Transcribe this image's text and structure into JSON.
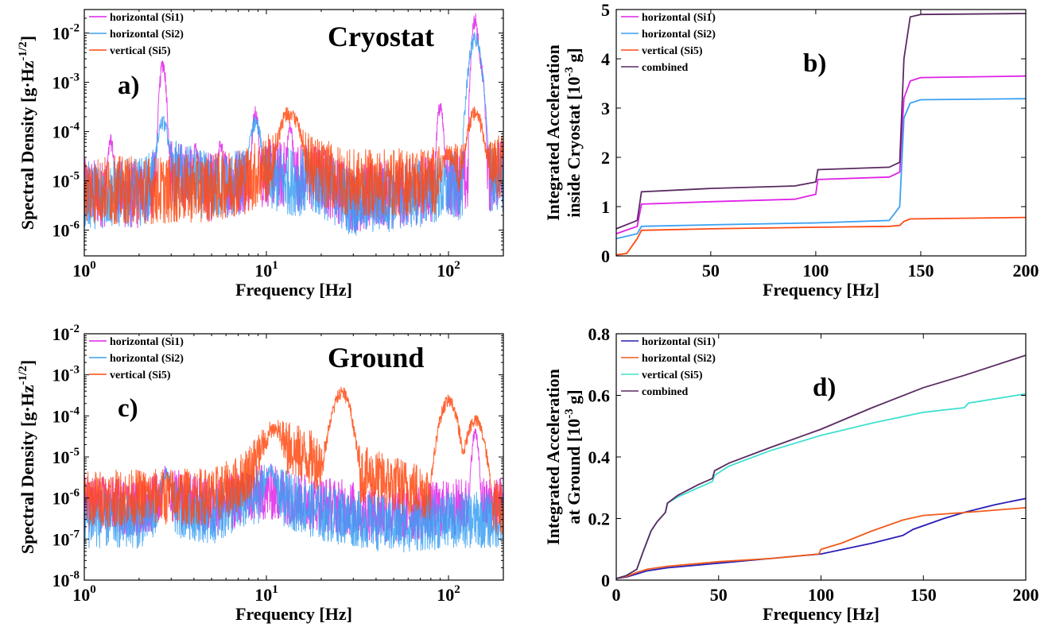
{
  "figure": {
    "panels": [
      {
        "tag": "a)",
        "title": "Cryostat"
      },
      {
        "tag": "b)",
        "title": ""
      },
      {
        "tag": "c)",
        "title": "Ground"
      },
      {
        "tag": "d)",
        "title": ""
      }
    ]
  },
  "colors": {
    "si1_psd": "#e022e8",
    "si2_psd": "#3aa0f2",
    "si5_psd": "#ff4a12",
    "combined": "#5a2a62",
    "ground_si1": "#2a1fb5",
    "ground_si2": "#f05a1a",
    "ground_si5": "#40e0d0"
  },
  "chart_data": [
    {
      "id": "a",
      "type": "line",
      "title": "Cryostat",
      "xlabel": "Frequency [Hz]",
      "ylabel": "Spectral Density [g·Hz",
      "ylabel_exp": "-1/2",
      "ylabel_close": "]",
      "xscale": "log",
      "yscale": "log",
      "xlim": [
        1,
        200
      ],
      "ylim": [
        3e-07,
        0.03
      ],
      "xticks": [
        1,
        10,
        100
      ],
      "xtick_labels": [
        {
          "base": "10",
          "exp": "0"
        },
        {
          "base": "10",
          "exp": "1"
        },
        {
          "base": "10",
          "exp": "2"
        }
      ],
      "yticks": [
        1e-06,
        1e-05,
        0.0001,
        0.001,
        0.01
      ],
      "ytick_labels": [
        {
          "base": "10",
          "exp": "-6"
        },
        {
          "base": "10",
          "exp": "-5"
        },
        {
          "base": "10",
          "exp": "-4"
        },
        {
          "base": "10",
          "exp": "-3"
        },
        {
          "base": "10",
          "exp": "-2"
        }
      ],
      "legend_position": "top-left",
      "series": [
        {
          "name": "horizontal (Si1)",
          "color": "#e022e8",
          "baseline": [
            [
              1,
              8e-06
            ],
            [
              2,
              7e-06
            ],
            [
              3,
              2e-05
            ],
            [
              5,
              1e-05
            ],
            [
              10,
              2e-05
            ],
            [
              20,
              1.5e-05
            ],
            [
              30,
              6e-06
            ],
            [
              60,
              8e-06
            ],
            [
              100,
              1.2e-05
            ],
            [
              200,
              1.8e-05
            ]
          ],
          "peaks": [
            [
              1.4,
              8e-05
            ],
            [
              2.7,
              0.003
            ],
            [
              4.1,
              6e-05
            ],
            [
              5.6,
              7e-05
            ],
            [
              8.7,
              0.0003
            ],
            [
              13.5,
              0.00015
            ],
            [
              90,
              0.0004
            ],
            [
              140,
              0.025
            ],
            [
              150,
              0.003
            ]
          ]
        },
        {
          "name": "horizontal (Si2)",
          "color": "#3aa0f2",
          "baseline": [
            [
              1,
              7e-06
            ],
            [
              2,
              8e-06
            ],
            [
              3,
              2e-05
            ],
            [
              5,
              1e-05
            ],
            [
              10,
              1.5e-05
            ],
            [
              20,
              1.2e-05
            ],
            [
              30,
              5e-06
            ],
            [
              60,
              7e-06
            ],
            [
              100,
              1e-05
            ],
            [
              200,
              1.6e-05
            ]
          ],
          "peaks": [
            [
              2.7,
              0.0002
            ],
            [
              8.7,
              0.0002
            ],
            [
              140,
              0.01
            ],
            [
              145,
              0.002
            ]
          ]
        },
        {
          "name": "vertical (Si5)",
          "color": "#ff4a12",
          "baseline": [
            [
              1,
              9e-06
            ],
            [
              3,
              9e-06
            ],
            [
              5,
              1e-05
            ],
            [
              8,
              1.5e-05
            ],
            [
              10,
              2.5e-05
            ],
            [
              14,
              4e-05
            ],
            [
              20,
              2e-05
            ],
            [
              30,
              1.2e-05
            ],
            [
              60,
              1.3e-05
            ],
            [
              100,
              1.5e-05
            ],
            [
              200,
              2.5e-05
            ]
          ],
          "peaks": [
            [
              13,
              0.0003
            ],
            [
              14,
              0.00025
            ],
            [
              100,
              4e-05
            ],
            [
              140,
              0.0003
            ]
          ]
        }
      ]
    },
    {
      "id": "b",
      "type": "line",
      "xlabel": "Frequency [Hz]",
      "ylabel_line1": "Integrated Acceleration",
      "ylabel_line2": "inside Cryostat [10",
      "ylabel_exp": "-3",
      "ylabel_close": " g]",
      "xlim": [
        5,
        200
      ],
      "ylim": [
        0,
        5
      ],
      "xticks": [
        50,
        100,
        150,
        200
      ],
      "yticks": [
        0,
        1,
        2,
        3,
        4,
        5
      ],
      "legend_position": "top-left",
      "series": [
        {
          "name": "horizontal (Si1)",
          "color": "#e022e8",
          "x": [
            5,
            15,
            17,
            50,
            90,
            100,
            101,
            135,
            140,
            142,
            145,
            150,
            200
          ],
          "y": [
            0.45,
            0.6,
            1.05,
            1.1,
            1.15,
            1.25,
            1.55,
            1.6,
            1.7,
            3.2,
            3.55,
            3.62,
            3.65
          ]
        },
        {
          "name": "horizontal (Si2)",
          "color": "#3aa0f2",
          "x": [
            5,
            15,
            17,
            50,
            100,
            135,
            140,
            142,
            145,
            150,
            200
          ],
          "y": [
            0.35,
            0.45,
            0.6,
            0.63,
            0.67,
            0.72,
            1.0,
            2.8,
            3.1,
            3.17,
            3.19
          ]
        },
        {
          "name": "vertical (Si5)",
          "color": "#ff4a12",
          "x": [
            5,
            10,
            15,
            17,
            50,
            100,
            135,
            140,
            142,
            145,
            200
          ],
          "y": [
            0.02,
            0.05,
            0.35,
            0.52,
            0.55,
            0.58,
            0.6,
            0.62,
            0.7,
            0.75,
            0.78
          ]
        },
        {
          "name": "combined",
          "color": "#5a2a62",
          "x": [
            5,
            15,
            17,
            50,
            90,
            100,
            101,
            135,
            140,
            142,
            145,
            150,
            200
          ],
          "y": [
            0.55,
            0.72,
            1.3,
            1.37,
            1.42,
            1.5,
            1.75,
            1.8,
            1.9,
            4.0,
            4.85,
            4.9,
            4.92
          ]
        }
      ]
    },
    {
      "id": "c",
      "type": "line",
      "title": "Ground",
      "xlabel": "Frequency [Hz]",
      "ylabel": "Spectral Density [g·Hz",
      "ylabel_exp": "-1/2",
      "ylabel_close": "]",
      "xscale": "log",
      "yscale": "log",
      "xlim": [
        1,
        200
      ],
      "ylim": [
        1e-08,
        0.01
      ],
      "xticks": [
        1,
        10,
        100
      ],
      "xtick_labels": [
        {
          "base": "10",
          "exp": "0"
        },
        {
          "base": "10",
          "exp": "1"
        },
        {
          "base": "10",
          "exp": "2"
        }
      ],
      "yticks": [
        1e-08,
        1e-07,
        1e-06,
        1e-05,
        0.0001,
        0.001,
        0.01
      ],
      "ytick_labels": [
        {
          "base": "10",
          "exp": "-8"
        },
        {
          "base": "10",
          "exp": "-7"
        },
        {
          "base": "10",
          "exp": "-6"
        },
        {
          "base": "10",
          "exp": "-5"
        },
        {
          "base": "10",
          "exp": "-4"
        },
        {
          "base": "10",
          "exp": "-3"
        },
        {
          "base": "10",
          "exp": "-2"
        }
      ],
      "legend_position": "top-left",
      "series": [
        {
          "name": "horizontal (Si1)",
          "color": "#e022e8",
          "baseline": [
            [
              1,
              1e-06
            ],
            [
              2,
              8e-07
            ],
            [
              3,
              1.5e-06
            ],
            [
              5,
              8e-07
            ],
            [
              10,
              2e-06
            ],
            [
              20,
              1e-06
            ],
            [
              50,
              5e-07
            ],
            [
              100,
              8e-07
            ],
            [
              200,
              1e-06
            ]
          ],
          "peaks": [
            [
              2.8,
              6e-06
            ],
            [
              140,
              5e-05
            ]
          ]
        },
        {
          "name": "horizontal (Si2)",
          "color": "#3aa0f2",
          "baseline": [
            [
              1,
              4e-07
            ],
            [
              2,
              4e-07
            ],
            [
              3,
              8e-07
            ],
            [
              5,
              5e-07
            ],
            [
              10,
              2e-06
            ],
            [
              20,
              6e-07
            ],
            [
              50,
              3e-07
            ],
            [
              100,
              4e-07
            ],
            [
              200,
              4e-07
            ]
          ],
          "peaks": [
            [
              2.8,
              5e-06
            ],
            [
              10.5,
              6e-06
            ]
          ]
        },
        {
          "name": "vertical (Si5)",
          "color": "#ff4a12",
          "baseline": [
            [
              1,
              1.3e-06
            ],
            [
              3,
              1.5e-06
            ],
            [
              5,
              1.5e-06
            ],
            [
              7,
              3e-06
            ],
            [
              10,
              2e-05
            ],
            [
              12,
              2.5e-05
            ],
            [
              20,
              1e-05
            ],
            [
              30,
              6e-06
            ],
            [
              50,
              3e-06
            ],
            [
              100,
              1.5e-06
            ],
            [
              200,
              8e-07
            ]
          ],
          "peaks": [
            [
              11,
              6e-05
            ],
            [
              25,
              0.0003
            ],
            [
              26,
              0.0005
            ],
            [
              100,
              0.0003
            ],
            [
              140,
              0.0001
            ]
          ]
        }
      ]
    },
    {
      "id": "d",
      "type": "line",
      "xlabel": "Frequency [Hz]",
      "ylabel_line1": "Integrated Acceleration",
      "ylabel_line2": "at Ground [10",
      "ylabel_exp": "-3",
      "ylabel_close": " g]",
      "xlim": [
        0,
        200
      ],
      "ylim": [
        0,
        0.8
      ],
      "xticks": [
        0,
        50,
        100,
        150,
        200
      ],
      "yticks": [
        0,
        0.2,
        0.4,
        0.6,
        0.8
      ],
      "legend_position": "top-left",
      "series": [
        {
          "name": "horizontal (Si1)",
          "color": "#2a1fb5",
          "x": [
            0,
            5,
            10,
            15,
            25,
            50,
            75,
            100,
            125,
            140,
            145,
            160,
            170,
            185,
            200
          ],
          "y": [
            0.005,
            0.01,
            0.02,
            0.03,
            0.04,
            0.055,
            0.07,
            0.085,
            0.12,
            0.145,
            0.165,
            0.2,
            0.22,
            0.245,
            0.265
          ]
        },
        {
          "name": "horizontal (Si2)",
          "color": "#f05a1a",
          "x": [
            0,
            5,
            10,
            15,
            25,
            50,
            75,
            99,
            100,
            110,
            125,
            140,
            150,
            175,
            200
          ],
          "y": [
            0.005,
            0.012,
            0.025,
            0.035,
            0.045,
            0.06,
            0.07,
            0.085,
            0.1,
            0.12,
            0.16,
            0.195,
            0.21,
            0.222,
            0.235
          ]
        },
        {
          "name": "vertical (Si5)",
          "color": "#40e0d0",
          "x": [
            0,
            5,
            10,
            13,
            17,
            20,
            24,
            25,
            30,
            40,
            47,
            48,
            55,
            75,
            100,
            125,
            150,
            170,
            172,
            200
          ],
          "y": [
            0.005,
            0.015,
            0.035,
            0.09,
            0.16,
            0.19,
            0.22,
            0.25,
            0.27,
            0.3,
            0.32,
            0.34,
            0.37,
            0.42,
            0.47,
            0.51,
            0.545,
            0.56,
            0.575,
            0.605
          ]
        },
        {
          "name": "combined",
          "color": "#5a2a62",
          "x": [
            0,
            5,
            10,
            13,
            17,
            20,
            24,
            25,
            30,
            40,
            47,
            48,
            55,
            75,
            100,
            125,
            150,
            170,
            200
          ],
          "y": [
            0.005,
            0.015,
            0.035,
            0.09,
            0.16,
            0.19,
            0.22,
            0.25,
            0.275,
            0.31,
            0.33,
            0.355,
            0.38,
            0.43,
            0.49,
            0.56,
            0.625,
            0.665,
            0.73
          ]
        }
      ]
    }
  ]
}
